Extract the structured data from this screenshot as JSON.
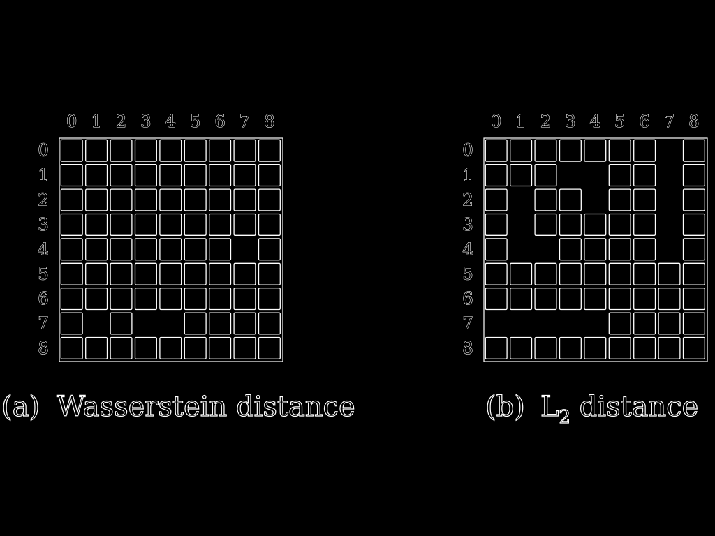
{
  "colors": {
    "background": "#000000",
    "stroke": "#ffffff"
  },
  "panels": [
    {
      "id": "a",
      "caption_prefix": "(a)",
      "caption_main": "Wasserstein distance",
      "caption_subscript": "",
      "caption_suffix": "",
      "column_labels": [
        "0",
        "1",
        "2",
        "3",
        "4",
        "5",
        "6",
        "7",
        "8"
      ],
      "row_labels": [
        "0",
        "1",
        "2",
        "3",
        "4",
        "5",
        "6",
        "7",
        "8"
      ],
      "missing_cells": [
        [
          4,
          7
        ],
        [
          7,
          1
        ],
        [
          7,
          3
        ],
        [
          7,
          4
        ]
      ]
    },
    {
      "id": "b",
      "caption_prefix": "(b)",
      "caption_main": "L",
      "caption_subscript": "2",
      "caption_suffix": " distance",
      "column_labels": [
        "0",
        "1",
        "2",
        "3",
        "4",
        "5",
        "6",
        "7",
        "8"
      ],
      "row_labels": [
        "0",
        "1",
        "2",
        "3",
        "4",
        "5",
        "6",
        "7",
        "8"
      ],
      "missing_cells": [
        [
          0,
          7
        ],
        [
          1,
          3
        ],
        [
          1,
          4
        ],
        [
          1,
          7
        ],
        [
          2,
          1
        ],
        [
          2,
          4
        ],
        [
          2,
          7
        ],
        [
          3,
          1
        ],
        [
          3,
          7
        ],
        [
          4,
          1
        ],
        [
          4,
          2
        ],
        [
          4,
          7
        ],
        [
          7,
          0
        ],
        [
          7,
          1
        ],
        [
          7,
          2
        ],
        [
          7,
          3
        ],
        [
          7,
          4
        ]
      ]
    }
  ]
}
